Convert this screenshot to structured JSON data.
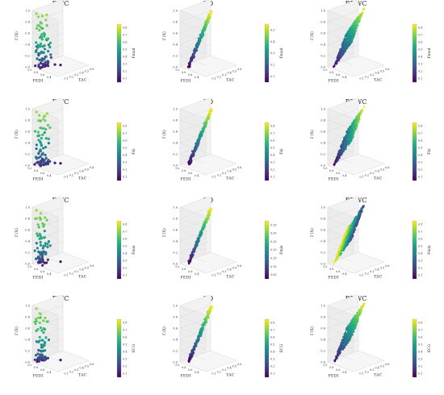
{
  "figure": {
    "column_titles": [
      "DWC",
      "RD",
      "RDWC"
    ],
    "colorbar_labels": [
      "Fmod",
      "Fbl",
      "Fmix",
      "ECG"
    ]
  },
  "chart_data": [
    {
      "type": "scatter3d",
      "title": "DWC",
      "row": 0,
      "col": 0,
      "xlabel": "TAC",
      "ylabel": "FEDI",
      "zlabel": "Γ(X)",
      "colorbar_label": "Fmod",
      "zlim": [
        0,
        1
      ],
      "colorbar_ticks": [
        "0.1",
        "0.2",
        "0.3",
        "0.4",
        "0.5",
        "0.6",
        "0.7",
        "0.8"
      ],
      "points": [
        [
          0.05,
          0.9,
          0.95,
          0.85
        ],
        [
          0.07,
          0.85,
          0.9,
          0.82
        ],
        [
          0.1,
          0.8,
          0.8,
          0.7
        ],
        [
          0.12,
          0.75,
          0.7,
          0.62
        ],
        [
          0.15,
          0.7,
          0.6,
          0.55
        ],
        [
          0.18,
          0.65,
          0.5,
          0.48
        ],
        [
          0.2,
          0.6,
          0.42,
          0.42
        ],
        [
          0.1,
          0.95,
          0.35,
          0.4
        ],
        [
          0.05,
          0.9,
          0.3,
          0.38
        ],
        [
          0.08,
          0.85,
          0.25,
          0.32
        ],
        [
          0.12,
          0.9,
          0.2,
          0.28
        ],
        [
          0.15,
          0.8,
          0.15,
          0.22
        ],
        [
          0.2,
          0.85,
          0.1,
          0.18
        ],
        [
          0.25,
          0.7,
          0.1,
          0.15
        ],
        [
          0.3,
          0.75,
          0.05,
          0.12
        ],
        [
          0.35,
          0.8,
          0.05,
          0.1
        ],
        [
          0.28,
          0.6,
          0.18,
          0.25
        ],
        [
          0.22,
          0.55,
          0.25,
          0.3
        ],
        [
          0.4,
          0.6,
          0.03,
          0.08
        ],
        [
          0.5,
          0.5,
          0.02,
          0.05
        ]
      ]
    },
    {
      "type": "scatter3d",
      "title": "RD",
      "row": 0,
      "col": 1,
      "xlabel": "TAC",
      "ylabel": "FEDI",
      "zlabel": "Γ(X)",
      "colorbar_label": "Fmod",
      "zlim": [
        0,
        1
      ],
      "colorbar_ticks": [
        "0.1",
        "0.2",
        "0.3",
        "0.4",
        "0.5"
      ],
      "points": [
        [
          0.1,
          0.9,
          0.05,
          0.05
        ],
        [
          0.15,
          0.85,
          0.15,
          0.1
        ],
        [
          0.2,
          0.8,
          0.25,
          0.15
        ],
        [
          0.25,
          0.75,
          0.35,
          0.2
        ],
        [
          0.3,
          0.7,
          0.45,
          0.25
        ],
        [
          0.35,
          0.65,
          0.55,
          0.3
        ],
        [
          0.4,
          0.6,
          0.65,
          0.35
        ],
        [
          0.45,
          0.55,
          0.75,
          0.4
        ],
        [
          0.5,
          0.5,
          0.85,
          0.45
        ],
        [
          0.55,
          0.45,
          0.95,
          0.5
        ]
      ]
    },
    {
      "type": "scatter3d",
      "title": "RDWC",
      "row": 0,
      "col": 2,
      "xlabel": "TAC",
      "ylabel": "FEDI",
      "zlabel": "Γ(X)",
      "colorbar_label": "Fmod",
      "zlim": [
        0,
        1
      ],
      "colorbar_ticks": [
        "0.1",
        "0.2",
        "0.3",
        "0.4",
        "0.5",
        "0.6",
        "0.7",
        "0.8"
      ],
      "points": [
        [
          0.1,
          0.9,
          0.2,
          0.1
        ],
        [
          0.3,
          0.7,
          0.5,
          0.4
        ],
        [
          0.5,
          0.5,
          0.8,
          0.8
        ]
      ]
    },
    {
      "type": "scatter3d",
      "title": "DWC",
      "row": 1,
      "col": 0,
      "xlabel": "TAC",
      "ylabel": "FEDI",
      "zlabel": "Γ(X)",
      "colorbar_label": "Fbl",
      "zlim": [
        0,
        1
      ],
      "colorbar_ticks": [
        "0.1",
        "0.2",
        "0.3",
        "0.4",
        "0.5",
        "0.6",
        "0.7",
        "0.8"
      ],
      "points": [
        [
          0.05,
          0.9,
          0.95,
          0.85
        ],
        [
          0.1,
          0.8,
          0.8,
          0.7
        ],
        [
          0.15,
          0.7,
          0.6,
          0.55
        ],
        [
          0.2,
          0.6,
          0.42,
          0.42
        ],
        [
          0.1,
          0.95,
          0.35,
          0.4
        ],
        [
          0.05,
          0.9,
          0.3,
          0.38
        ],
        [
          0.12,
          0.9,
          0.2,
          0.28
        ],
        [
          0.2,
          0.85,
          0.1,
          0.18
        ],
        [
          0.3,
          0.75,
          0.05,
          0.12
        ],
        [
          0.4,
          0.6,
          0.03,
          0.08
        ],
        [
          0.5,
          0.5,
          0.02,
          0.05
        ]
      ]
    },
    {
      "type": "scatter3d",
      "title": "RD",
      "row": 1,
      "col": 1,
      "xlabel": "TAC",
      "ylabel": "FEDI",
      "zlabel": "Γ(X)",
      "colorbar_label": "Fbl",
      "zlim": [
        0,
        1
      ],
      "colorbar_ticks": [
        "0.1",
        "0.2",
        "0.3",
        "0.4",
        "0.5",
        "0.6",
        "0.7",
        "0.8"
      ],
      "points": [
        [
          0.1,
          0.9,
          0.05,
          0.05
        ],
        [
          0.2,
          0.8,
          0.25,
          0.2
        ],
        [
          0.3,
          0.7,
          0.45,
          0.4
        ],
        [
          0.4,
          0.6,
          0.65,
          0.6
        ],
        [
          0.5,
          0.5,
          0.85,
          0.8
        ]
      ]
    },
    {
      "type": "scatter3d",
      "title": "RDWC",
      "row": 1,
      "col": 2,
      "xlabel": "TAC",
      "ylabel": "FEDI",
      "zlabel": "Γ(X)",
      "colorbar_label": "Fbl",
      "zlim": [
        0,
        1
      ],
      "colorbar_ticks": [
        "0.1",
        "0.2",
        "0.3",
        "0.4",
        "0.5",
        "0.6",
        "0.7",
        "0.8"
      ],
      "points": [
        [
          0.1,
          0.9,
          0.2,
          0.15
        ],
        [
          0.3,
          0.7,
          0.5,
          0.5
        ],
        [
          0.5,
          0.5,
          0.8,
          0.8
        ]
      ]
    },
    {
      "type": "scatter3d",
      "title": "DWC",
      "row": 2,
      "col": 0,
      "xlabel": "TAC",
      "ylabel": "FEDI",
      "zlabel": "Γ(X)",
      "colorbar_label": "Fmix",
      "zlim": [
        0,
        1
      ],
      "colorbar_ticks": [
        "0.1",
        "0.2",
        "0.3",
        "0.4",
        "0.5",
        "0.6",
        "0.7",
        "0.8"
      ],
      "points": [
        [
          0.05,
          0.9,
          0.95,
          0.85
        ],
        [
          0.1,
          0.8,
          0.8,
          0.7
        ],
        [
          0.15,
          0.7,
          0.6,
          0.55
        ],
        [
          0.2,
          0.6,
          0.42,
          0.42
        ],
        [
          0.1,
          0.95,
          0.35,
          0.4
        ],
        [
          0.12,
          0.9,
          0.2,
          0.28
        ],
        [
          0.2,
          0.85,
          0.1,
          0.18
        ],
        [
          0.3,
          0.75,
          0.05,
          0.12
        ],
        [
          0.5,
          0.5,
          0.02,
          0.05
        ]
      ]
    },
    {
      "type": "scatter3d",
      "title": "RD",
      "row": 2,
      "col": 1,
      "xlabel": "TAC",
      "ylabel": "FEDI",
      "zlabel": "Γ(X)",
      "colorbar_label": "Fmix",
      "zlim": [
        0,
        1
      ],
      "colorbar_ticks": [
        "0.05",
        "0.10",
        "0.15",
        "0.20",
        "0.25",
        "0.30",
        "0.35"
      ],
      "points": [
        [
          0.1,
          0.9,
          0.05,
          0.05
        ],
        [
          0.2,
          0.8,
          0.25,
          0.1
        ],
        [
          0.3,
          0.7,
          0.45,
          0.2
        ],
        [
          0.4,
          0.6,
          0.65,
          0.27
        ],
        [
          0.5,
          0.5,
          0.85,
          0.35
        ]
      ]
    },
    {
      "type": "scatter3d",
      "title": "RDWC",
      "row": 2,
      "col": 2,
      "xlabel": "TAC",
      "ylabel": "FEDI",
      "zlabel": "Γ(X)",
      "colorbar_label": "Fmix",
      "zlim": [
        0,
        1
      ],
      "colorbar_ticks": [
        "0.1",
        "0.2",
        "0.3",
        "0.4",
        "0.5",
        "0.6",
        "0.7",
        "0.8"
      ],
      "points": [
        [
          0.1,
          0.9,
          0.2,
          0.2
        ],
        [
          0.3,
          0.7,
          0.5,
          0.5
        ],
        [
          0.5,
          0.5,
          0.8,
          0.8
        ]
      ]
    },
    {
      "type": "scatter3d",
      "title": "DWC",
      "row": 3,
      "col": 0,
      "xlabel": "TAC",
      "ylabel": "FEDI",
      "zlabel": "Γ(X)",
      "colorbar_label": "ECG",
      "zlim": [
        0,
        1
      ],
      "colorbar_ticks": [
        "0.1",
        "0.2",
        "0.3",
        "0.4",
        "0.5",
        "0.6",
        "0.7",
        "0.8"
      ],
      "points": [
        [
          0.05,
          0.9,
          0.95,
          0.85
        ],
        [
          0.1,
          0.8,
          0.8,
          0.7
        ],
        [
          0.15,
          0.7,
          0.6,
          0.55
        ],
        [
          0.2,
          0.6,
          0.42,
          0.42
        ],
        [
          0.1,
          0.95,
          0.35,
          0.4
        ],
        [
          0.12,
          0.9,
          0.2,
          0.28
        ],
        [
          0.2,
          0.85,
          0.1,
          0.18
        ],
        [
          0.3,
          0.75,
          0.05,
          0.12
        ],
        [
          0.5,
          0.5,
          0.02,
          0.05
        ]
      ]
    },
    {
      "type": "scatter3d",
      "title": "RD",
      "row": 3,
      "col": 1,
      "xlabel": "TAC",
      "ylabel": "FEDI",
      "zlabel": "Γ(X)",
      "colorbar_label": "ECG",
      "zlim": [
        0,
        1
      ],
      "colorbar_ticks": [
        "0.1",
        "0.2",
        "0.3",
        "0.4",
        "0.5",
        "0.6",
        "0.7",
        "0.8"
      ],
      "points": [
        [
          0.1,
          0.9,
          0.05,
          0.05
        ],
        [
          0.2,
          0.8,
          0.25,
          0.2
        ],
        [
          0.3,
          0.7,
          0.45,
          0.4
        ],
        [
          0.4,
          0.6,
          0.65,
          0.6
        ],
        [
          0.5,
          0.5,
          0.85,
          0.8
        ]
      ]
    },
    {
      "type": "scatter3d",
      "title": "RDWC",
      "row": 3,
      "col": 2,
      "xlabel": "TAC",
      "ylabel": "FEDI",
      "zlabel": "Γ(X)",
      "colorbar_label": "ECG",
      "zlim": [
        0,
        1
      ],
      "colorbar_ticks": [
        "0.1",
        "0.2",
        "0.3",
        "0.4",
        "0.5",
        "0.6",
        "0.7",
        "0.8"
      ],
      "points": [
        [
          0.1,
          0.9,
          0.2,
          0.2
        ],
        [
          0.3,
          0.7,
          0.5,
          0.5
        ],
        [
          0.5,
          0.5,
          0.8,
          0.8
        ]
      ]
    }
  ]
}
